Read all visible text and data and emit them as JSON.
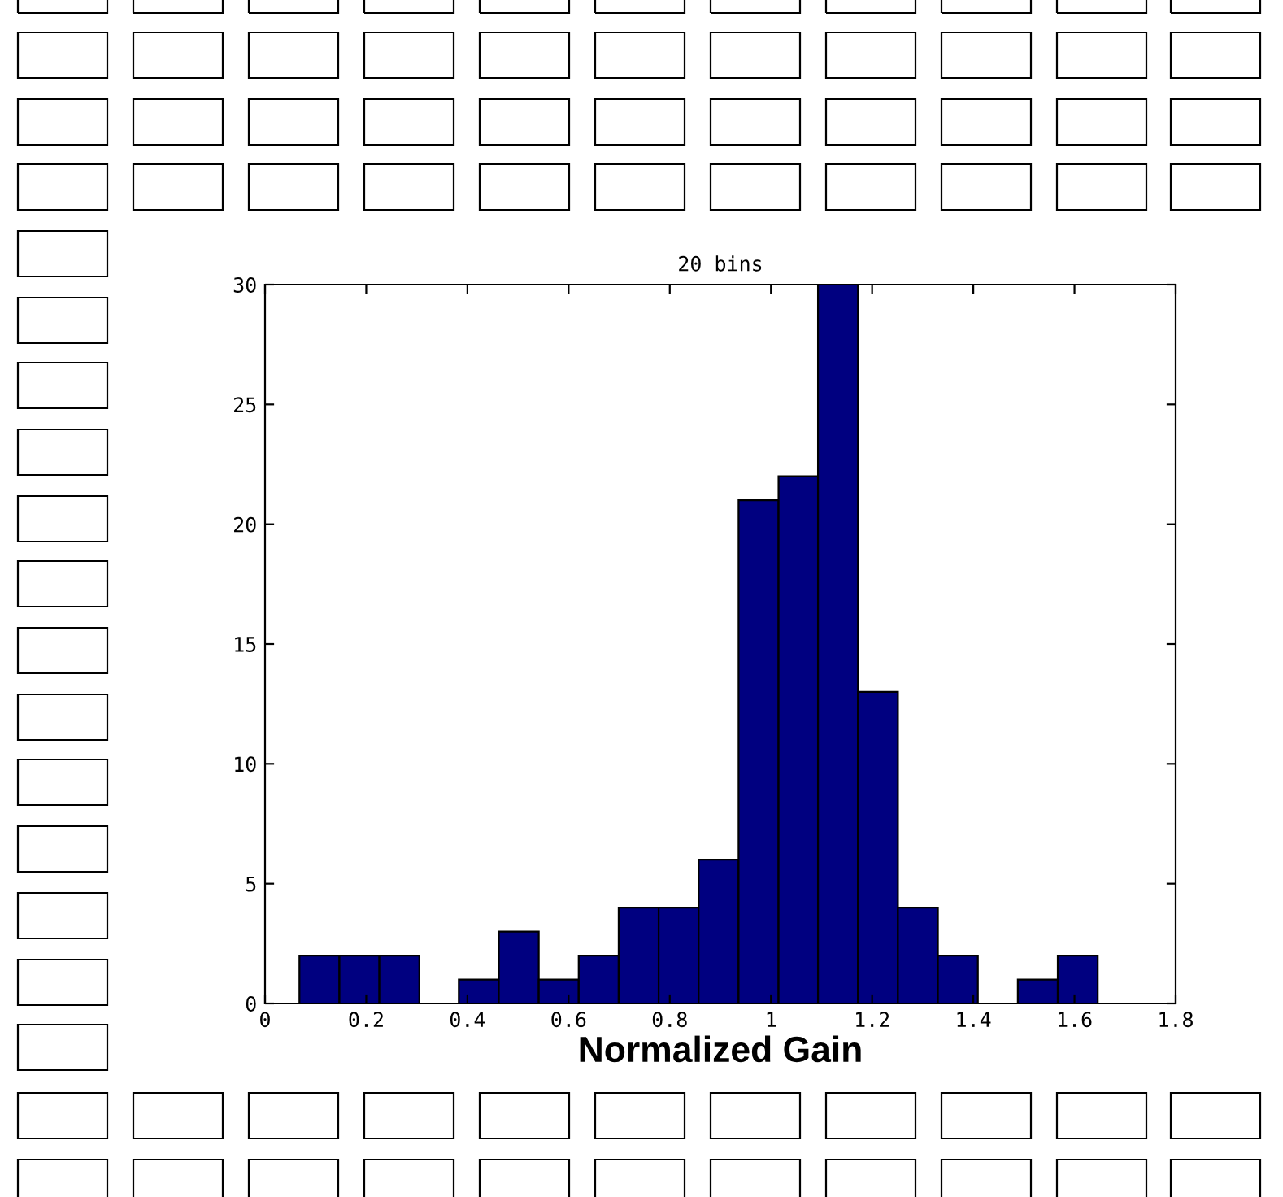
{
  "chart_data": {
    "type": "histogram",
    "title": "20 bins",
    "xlabel": "Normalized Gain",
    "bins": [
      0.068,
      0.147,
      0.226,
      0.305,
      0.383,
      0.462,
      0.541,
      0.62,
      0.699,
      0.778,
      0.857,
      0.936,
      1.015,
      1.093,
      1.172,
      1.251,
      1.33,
      1.409,
      1.488,
      1.567,
      1.646
    ],
    "values": [
      2,
      2,
      2,
      0,
      1,
      3,
      1,
      2,
      4,
      4,
      6,
      21,
      22,
      30,
      13,
      4,
      2,
      0,
      1,
      2
    ],
    "color": "#000080",
    "xlim": [
      0,
      1.8
    ],
    "xticks": [
      0,
      0.2,
      0.4,
      0.6,
      0.8,
      1,
      1.2,
      1.4,
      1.6,
      1.8
    ],
    "ylim": [
      0,
      30
    ],
    "yticks": [
      0,
      5,
      10,
      15,
      20,
      25,
      30
    ],
    "grid": false,
    "legend": false
  }
}
